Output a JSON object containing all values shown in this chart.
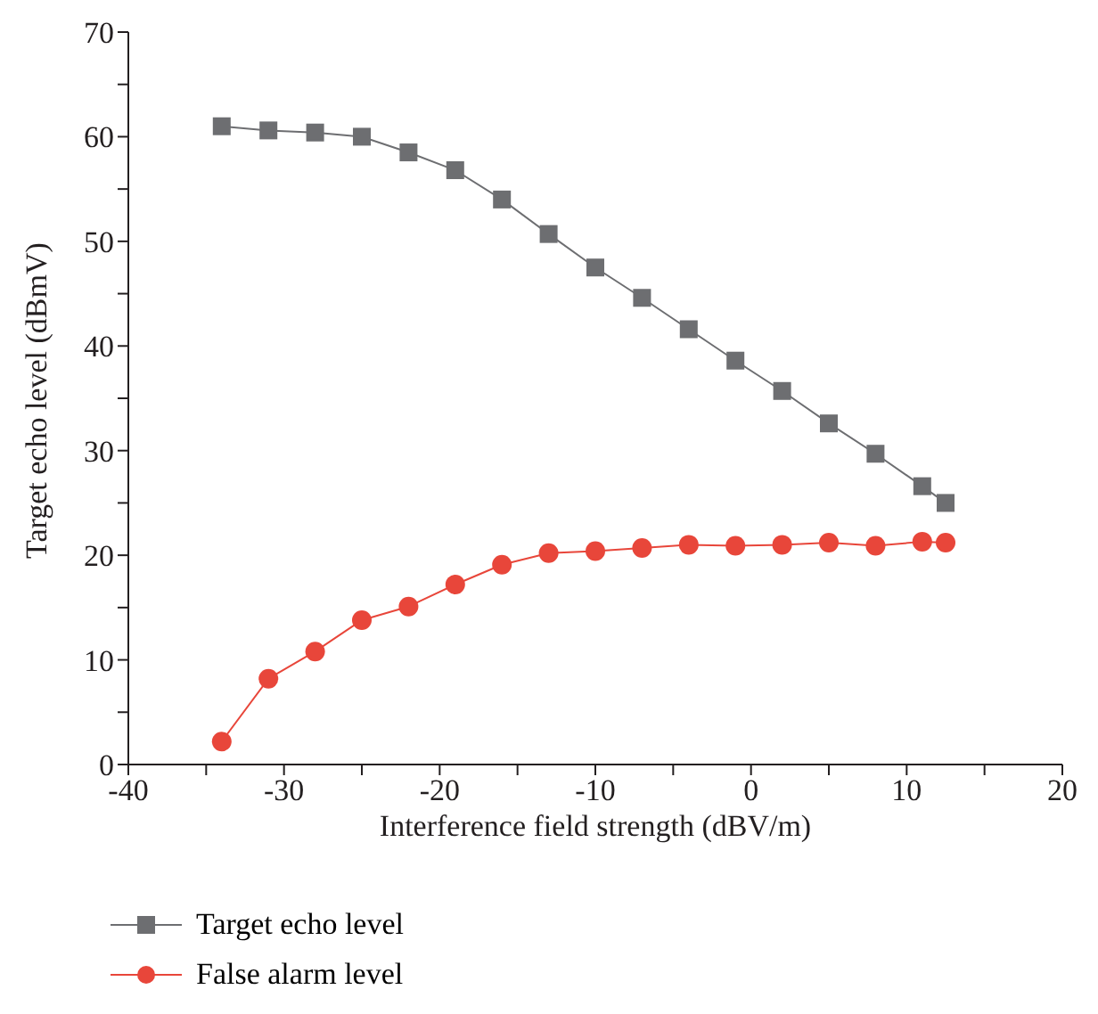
{
  "chart_data": {
    "type": "line",
    "xlabel": "Interference field strength (dBV/m)",
    "ylabel": "Target echo level (dBmV)",
    "x": [
      -34,
      -31,
      -28,
      -25,
      -22,
      -19,
      -16,
      -13,
      -10,
      -7,
      -4,
      -1,
      2,
      5,
      8,
      11,
      12.5
    ],
    "series": [
      {
        "name": "Target echo level",
        "color": "#6d6e71",
        "marker": "square",
        "values": [
          61,
          60.6,
          60.4,
          60,
          58.5,
          56.8,
          54,
          50.7,
          47.5,
          44.6,
          41.6,
          38.6,
          35.7,
          32.6,
          29.7,
          26.6,
          25
        ]
      },
      {
        "name": "False alarm level",
        "color": "#e8463a",
        "marker": "circle",
        "values": [
          2.2,
          8.2,
          10.8,
          13.8,
          15.1,
          17.2,
          19.1,
          20.2,
          20.4,
          20.7,
          21,
          20.9,
          21,
          21.2,
          20.9,
          21.3,
          21.2
        ]
      }
    ],
    "xlim": [
      -40,
      20
    ],
    "xticks": [
      -40,
      {
        "value": -35,
        "label": null
      },
      -30,
      {
        "value": -25,
        "label": null
      },
      -20,
      {
        "value": -15,
        "label": null
      },
      -10,
      {
        "value": -5,
        "label": null
      },
      0,
      {
        "value": 5,
        "label": null
      },
      10,
      {
        "value": 15,
        "label": null
      },
      20
    ],
    "ylim": [
      0,
      70
    ],
    "yticks": [
      0,
      {
        "value": 5,
        "label": null
      },
      10,
      {
        "value": 15,
        "label": null
      },
      20,
      {
        "value": 25,
        "label": null
      },
      30,
      {
        "value": 35,
        "label": null
      },
      40,
      {
        "value": 45,
        "label": null
      },
      50,
      {
        "value": 55,
        "label": null
      },
      60,
      {
        "value": 65,
        "label": null
      },
      70
    ],
    "grid": false,
    "legend": "bottom left"
  }
}
